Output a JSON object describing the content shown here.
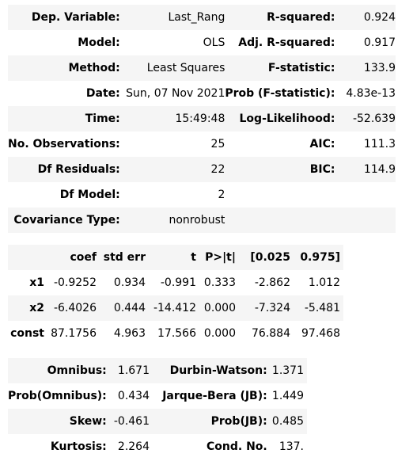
{
  "model_summary": {
    "rows": [
      {
        "l1": "Dep. Variable:",
        "v1": "Last_Rang",
        "l2": "R-squared:",
        "v2": "0.924"
      },
      {
        "l1": "Model:",
        "v1": "OLS",
        "l2": "Adj. R-squared:",
        "v2": "0.917"
      },
      {
        "l1": "Method:",
        "v1": "Least Squares",
        "l2": "F-statistic:",
        "v2": "133.9"
      },
      {
        "l1": "Date:",
        "v1": "Sun, 07 Nov 2021",
        "l2": "Prob (F-statistic):",
        "v2": "4.83e-13"
      },
      {
        "l1": "Time:",
        "v1": "15:49:48",
        "l2": "Log-Likelihood:",
        "v2": "-52.639"
      },
      {
        "l1": "No. Observations:",
        "v1": "25",
        "l2": "AIC:",
        "v2": "111.3"
      },
      {
        "l1": "Df Residuals:",
        "v1": "22",
        "l2": "BIC:",
        "v2": "114.9"
      },
      {
        "l1": "Df Model:",
        "v1": "2",
        "l2": "",
        "v2": ""
      },
      {
        "l1": "Covariance Type:",
        "v1": "nonrobust",
        "l2": "",
        "v2": ""
      }
    ]
  },
  "coefficients": {
    "headers": [
      "",
      "coef",
      "std err",
      "t",
      "P>|t|",
      "[0.025",
      "0.975]"
    ],
    "rows": [
      {
        "name": "x1",
        "values": [
          "-0.9252",
          "0.934",
          "-0.991",
          "0.333",
          "-2.862",
          "1.012"
        ]
      },
      {
        "name": "x2",
        "values": [
          "-6.4026",
          "0.444",
          "-14.412",
          "0.000",
          "-7.324",
          "-5.481"
        ]
      },
      {
        "name": "const",
        "values": [
          "87.1756",
          "4.963",
          "17.566",
          "0.000",
          "76.884",
          "97.468"
        ]
      }
    ]
  },
  "diagnostics": {
    "rows": [
      {
        "l1": "Omnibus:",
        "v1": "1.671",
        "l2": "Durbin-Watson:",
        "v2": "1.371"
      },
      {
        "l1": "Prob(Omnibus):",
        "v1": "0.434",
        "l2": "Jarque-Bera (JB):",
        "v2": "1.449"
      },
      {
        "l1": "Skew:",
        "v1": "-0.461",
        "l2": "Prob(JB):",
        "v2": "0.485"
      },
      {
        "l1": "Kurtosis:",
        "v1": "2.264",
        "l2": "Cond. No.",
        "v2": "137."
      }
    ]
  },
  "colors": {
    "stripe": "#f5f5f5",
    "text": "#000000",
    "background": "#ffffff"
  }
}
